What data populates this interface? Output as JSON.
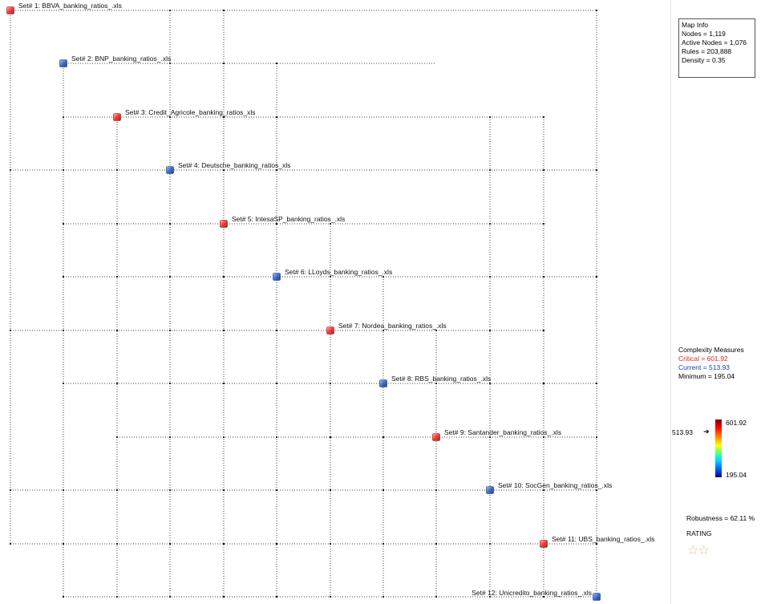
{
  "map_info": {
    "title": "Map Info",
    "nodes": "Nodes = 1,119",
    "active_nodes": "Active Nodes = 1,076",
    "rules": "Rules = 203,888",
    "density": "Density = 0.35"
  },
  "complexity": {
    "title": "Complexity Measures",
    "critical": "Critical = 601.92",
    "current": "Current = 513.93",
    "minimum": "Minimum = 195.04"
  },
  "legend": {
    "max": "601.92",
    "min": "195.04",
    "current": "513.93",
    "current_value": 513.93,
    "max_value": 601.92,
    "min_value": 195.04
  },
  "robustness": "Robustness = 62.11 %",
  "rating": {
    "label": "RATING",
    "stars": "☆☆",
    "count": 2
  },
  "colors": {
    "red_node": "#e8413c",
    "blue_node": "#3f6fc8"
  },
  "nodes": [
    {
      "label": "Set# 1: BBVA_banking_ratios_.xls",
      "color": "red"
    },
    {
      "label": "Set# 2: BNP_banking_ratios_.xls",
      "color": "blue"
    },
    {
      "label": "Set# 3: Credit_Agricole_banking_ratios_xls",
      "color": "red"
    },
    {
      "label": "Set# 4: Deutsche_banking_ratios_xls",
      "color": "blue"
    },
    {
      "label": "Set# 5: IntesaSP_banking_ratios_.xls",
      "color": "red"
    },
    {
      "label": "Set# 6: LLoyds_banking_ratios_.xls",
      "color": "blue"
    },
    {
      "label": "Set# 7: Nordea_banking_ratios_.xls",
      "color": "red"
    },
    {
      "label": "Set# 8: RBS_banking_ratios_.xls",
      "color": "blue"
    },
    {
      "label": "Set# 9: Santander_banking_ratios_.xls",
      "color": "red"
    },
    {
      "label": "Set# 10: SocGen_banking_ratios_.xls",
      "color": "blue"
    },
    {
      "label": "Set# 11: UBS_banking_ratios_.xls",
      "color": "red"
    },
    {
      "label": "Set# 12: Unicredito_banking_ratios_.xls",
      "color": "blue"
    }
  ]
}
